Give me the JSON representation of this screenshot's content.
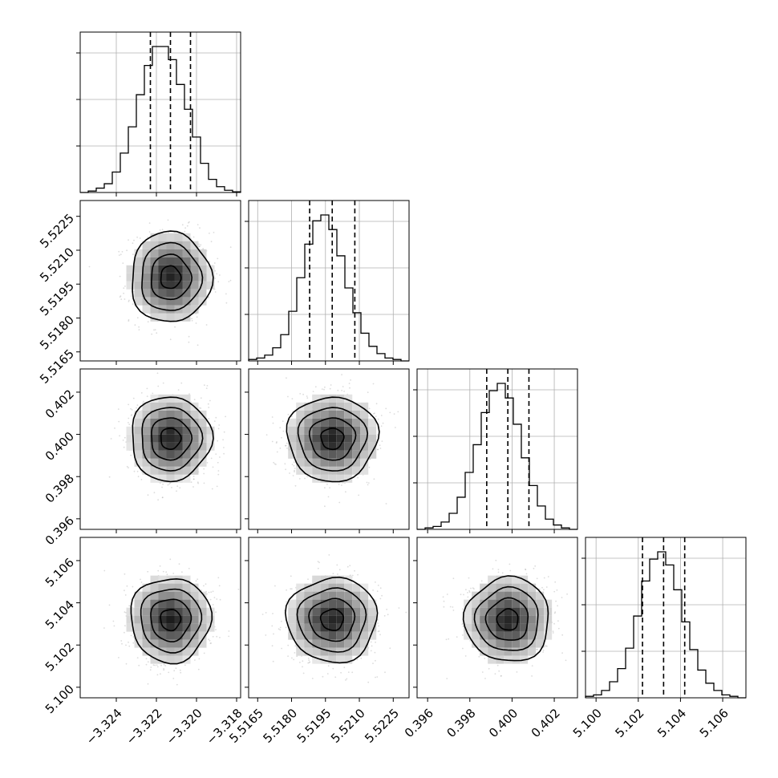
{
  "figure": {
    "type": "corner",
    "parameters": 4
  },
  "chart_data": {
    "type": "corner",
    "ticks": {
      "p0": [
        "−3.324",
        "−3.322",
        "−3.320",
        "−3.318"
      ],
      "p1": [
        "5.5165",
        "5.5180",
        "5.5195",
        "5.5210",
        "5.5225"
      ],
      "p2": [
        "0.396",
        "0.398",
        "0.400",
        "0.402"
      ],
      "p3": [
        "5.100",
        "5.102",
        "5.104",
        "5.106"
      ]
    },
    "ranges": {
      "p0": [
        -3.3258,
        -3.3178
      ],
      "p1": [
        5.5161,
        5.5232
      ],
      "p2": [
        0.3955,
        0.4031
      ],
      "p3": [
        5.0995,
        5.1071
      ]
    },
    "quantiles": {
      "p0": [
        -3.3223,
        -3.3213,
        -3.3203
      ],
      "p1": [
        5.5188,
        5.5198,
        5.5208
      ],
      "p2": [
        0.3988,
        0.3998,
        0.4008
      ],
      "p3": [
        5.1022,
        5.1032,
        5.1042
      ]
    },
    "means": {
      "p0": -3.3213,
      "p1": 5.5198,
      "p2": 0.3998,
      "p3": 5.1032
    },
    "sigmas": {
      "p0": 0.001,
      "p1": 0.001,
      "p2": 0.001,
      "p3": 0.001
    },
    "histograms": [
      [
        0.0,
        0.01,
        0.03,
        0.06,
        0.14,
        0.27,
        0.45,
        0.67,
        0.87,
        1.0,
        1.0,
        0.91,
        0.74,
        0.57,
        0.38,
        0.2,
        0.09,
        0.04,
        0.015,
        0.005
      ],
      [
        0.01,
        0.02,
        0.04,
        0.09,
        0.18,
        0.34,
        0.57,
        0.8,
        0.96,
        1.0,
        0.9,
        0.72,
        0.5,
        0.33,
        0.19,
        0.1,
        0.05,
        0.02,
        0.01,
        0.0
      ],
      [
        0.0,
        0.01,
        0.02,
        0.05,
        0.11,
        0.22,
        0.39,
        0.58,
        0.8,
        0.95,
        1.0,
        0.9,
        0.72,
        0.49,
        0.3,
        0.16,
        0.07,
        0.03,
        0.01,
        0.0
      ],
      [
        0.01,
        0.02,
        0.05,
        0.11,
        0.2,
        0.34,
        0.56,
        0.8,
        0.95,
        1.0,
        0.91,
        0.74,
        0.52,
        0.33,
        0.19,
        0.1,
        0.05,
        0.02,
        0.01,
        0.0
      ]
    ],
    "contour_levels": [
      0.5,
      1.0,
      1.5,
      2.0
    ],
    "grid": true
  }
}
